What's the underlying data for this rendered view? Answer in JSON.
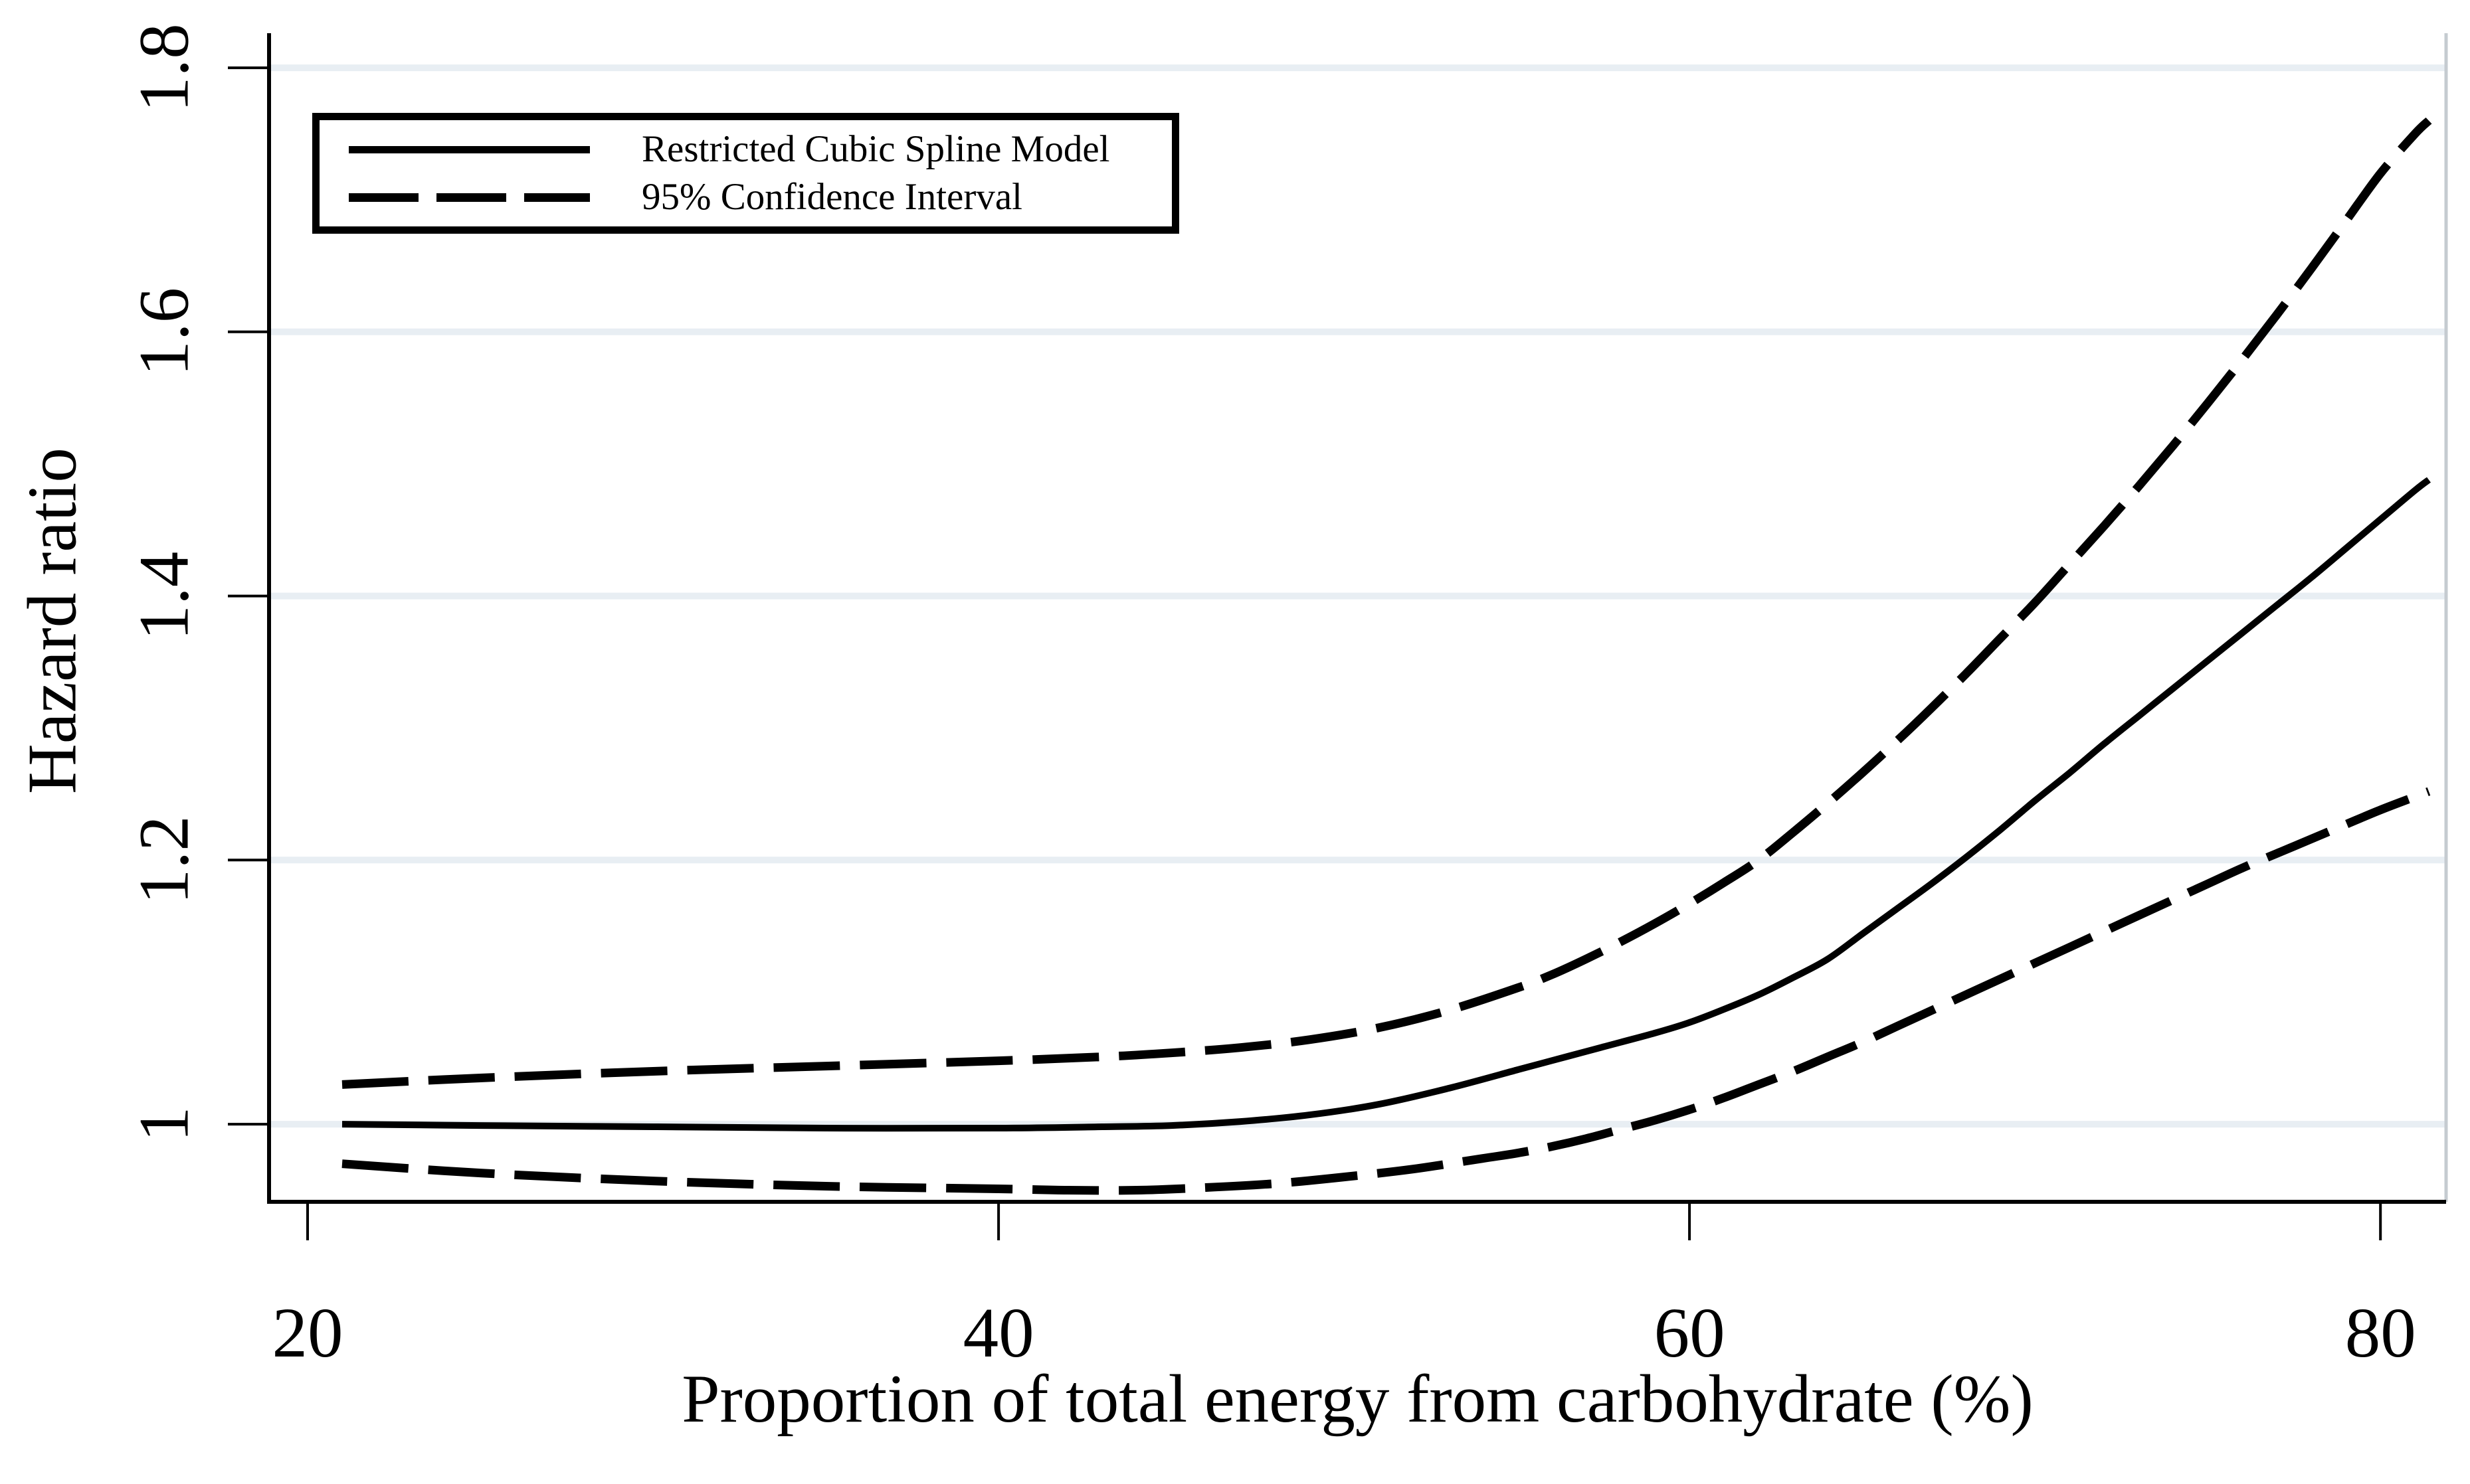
{
  "chart_data": {
    "type": "line",
    "title": "",
    "xlabel": "Proportion of total energy from carbohydrate (%)",
    "ylabel": "Hazard ratio",
    "xlim": [
      18.885,
      81.9
    ],
    "ylim": [
      0.9412,
      1.8262
    ],
    "xticks": [
      20,
      40,
      60,
      80
    ],
    "xtick_labels": [
      "20",
      "40",
      "60",
      "80"
    ],
    "yticks": [
      1,
      1.2,
      1.4,
      1.6,
      1.8
    ],
    "ytick_labels": [
      "1",
      "1.2",
      "1.4",
      "1.6",
      "1.8"
    ],
    "ytick_label_rotation_deg": -90,
    "grid": "horizontal gridlines at y ticks",
    "legend": {
      "position": "top-left",
      "entries": [
        {
          "label": "Restricted Cubic Spline Model",
          "style": "solid"
        },
        {
          "label": "95% Confidence Interval",
          "style": "dashed"
        }
      ]
    },
    "series": [
      {
        "id": "rcs-model",
        "name": "Restricted Cubic Spline Model",
        "style": "solid",
        "points": [
          [
            21,
            1.0
          ],
          [
            25,
            0.999
          ],
          [
            30,
            0.998
          ],
          [
            35,
            0.997
          ],
          [
            40,
            0.997
          ],
          [
            43,
            0.998
          ],
          [
            45,
            0.999
          ],
          [
            47,
            1.002
          ],
          [
            49,
            1.007
          ],
          [
            51,
            1.015
          ],
          [
            53,
            1.027
          ],
          [
            55,
            1.041
          ],
          [
            56,
            1.048
          ],
          [
            57,
            1.055
          ],
          [
            58,
            1.062
          ],
          [
            59,
            1.069
          ],
          [
            60,
            1.077
          ],
          [
            61,
            1.087
          ],
          [
            62,
            1.098
          ],
          [
            63,
            1.111
          ],
          [
            64,
            1.125
          ],
          [
            65,
            1.144
          ],
          [
            66,
            1.163
          ],
          [
            67,
            1.182
          ],
          [
            68,
            1.202
          ],
          [
            69,
            1.223
          ],
          [
            70,
            1.245
          ],
          [
            71,
            1.266
          ],
          [
            72,
            1.288
          ],
          [
            73,
            1.309
          ],
          [
            74,
            1.33
          ],
          [
            75,
            1.351
          ],
          [
            76,
            1.372
          ],
          [
            77,
            1.393
          ],
          [
            78,
            1.414
          ],
          [
            79,
            1.436
          ],
          [
            80,
            1.458
          ],
          [
            81,
            1.48
          ],
          [
            81.4,
            1.488
          ]
        ]
      },
      {
        "id": "ci-upper",
        "name": "95% Confidence Interval (upper)",
        "style": "dashed",
        "points": [
          [
            21,
            1.03
          ],
          [
            25,
            1.035
          ],
          [
            30,
            1.04
          ],
          [
            35,
            1.044
          ],
          [
            40,
            1.048
          ],
          [
            43,
            1.051
          ],
          [
            45,
            1.054
          ],
          [
            47,
            1.058
          ],
          [
            49,
            1.064
          ],
          [
            51,
            1.073
          ],
          [
            53,
            1.086
          ],
          [
            55,
            1.103
          ],
          [
            56,
            1.113
          ],
          [
            57,
            1.125
          ],
          [
            58,
            1.138
          ],
          [
            59,
            1.152
          ],
          [
            60,
            1.167
          ],
          [
            61,
            1.183
          ],
          [
            62,
            1.2
          ],
          [
            63,
            1.221
          ],
          [
            64,
            1.243
          ],
          [
            65,
            1.266
          ],
          [
            66,
            1.29
          ],
          [
            67,
            1.315
          ],
          [
            68,
            1.341
          ],
          [
            69,
            1.368
          ],
          [
            70,
            1.395
          ],
          [
            71,
            1.424
          ],
          [
            72,
            1.453
          ],
          [
            73,
            1.483
          ],
          [
            74,
            1.514
          ],
          [
            75,
            1.546
          ],
          [
            76,
            1.579
          ],
          [
            77,
            1.613
          ],
          [
            78,
            1.648
          ],
          [
            79,
            1.684
          ],
          [
            80,
            1.72
          ],
          [
            81,
            1.75
          ],
          [
            81.4,
            1.76
          ]
        ]
      },
      {
        "id": "ci-lower",
        "name": "95% Confidence Interval (lower)",
        "style": "dashed",
        "points": [
          [
            21,
            0.97
          ],
          [
            25,
            0.963
          ],
          [
            30,
            0.957
          ],
          [
            35,
            0.953
          ],
          [
            40,
            0.951
          ],
          [
            42,
            0.95
          ],
          [
            44,
            0.95
          ],
          [
            46,
            0.952
          ],
          [
            48,
            0.955
          ],
          [
            50,
            0.96
          ],
          [
            52,
            0.966
          ],
          [
            54,
            0.974
          ],
          [
            55,
            0.978
          ],
          [
            56,
            0.983
          ],
          [
            57,
            0.989
          ],
          [
            58,
            0.996
          ],
          [
            59,
            1.003
          ],
          [
            60,
            1.011
          ],
          [
            61,
            1.02
          ],
          [
            62,
            1.03
          ],
          [
            63,
            1.04
          ],
          [
            64,
            1.051
          ],
          [
            65,
            1.062
          ],
          [
            66,
            1.074
          ],
          [
            67,
            1.086
          ],
          [
            68,
            1.098
          ],
          [
            69,
            1.11
          ],
          [
            70,
            1.122
          ],
          [
            71,
            1.134
          ],
          [
            72,
            1.146
          ],
          [
            73,
            1.158
          ],
          [
            74,
            1.17
          ],
          [
            75,
            1.182
          ],
          [
            76,
            1.194
          ],
          [
            77,
            1.205
          ],
          [
            78,
            1.216
          ],
          [
            79,
            1.227
          ],
          [
            80,
            1.238
          ],
          [
            81,
            1.248
          ],
          [
            81.4,
            1.252
          ]
        ]
      }
    ]
  },
  "colors": {
    "line": "#000000",
    "axis": "#000000",
    "gridline": "#e8eef3",
    "plot_border_right": "#c5cbd0",
    "background": "#ffffff"
  }
}
